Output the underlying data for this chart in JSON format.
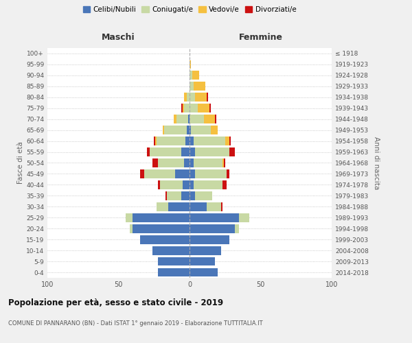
{
  "age_groups": [
    "0-4",
    "5-9",
    "10-14",
    "15-19",
    "20-24",
    "25-29",
    "30-34",
    "35-39",
    "40-44",
    "45-49",
    "50-54",
    "55-59",
    "60-64",
    "65-69",
    "70-74",
    "75-79",
    "80-84",
    "85-89",
    "90-94",
    "95-99",
    "100+"
  ],
  "birth_years": [
    "2014-2018",
    "2009-2013",
    "2004-2008",
    "1999-2003",
    "1994-1998",
    "1989-1993",
    "1984-1988",
    "1979-1983",
    "1974-1978",
    "1969-1973",
    "1964-1968",
    "1959-1963",
    "1954-1958",
    "1949-1953",
    "1944-1948",
    "1939-1943",
    "1934-1938",
    "1929-1933",
    "1924-1928",
    "1919-1923",
    "≤ 1918"
  ],
  "colors": {
    "celibe": "#4a76b8",
    "coniugato": "#c8d9a4",
    "vedovo": "#f5c040",
    "divorziato": "#cc1111"
  },
  "male": {
    "celibe": [
      22,
      22,
      26,
      35,
      40,
      40,
      15,
      6,
      5,
      10,
      4,
      6,
      3,
      2,
      1,
      0,
      0,
      0,
      0,
      0,
      0
    ],
    "coniugato": [
      0,
      0,
      0,
      0,
      2,
      5,
      8,
      10,
      16,
      22,
      18,
      22,
      20,
      16,
      8,
      4,
      2,
      0,
      0,
      0,
      0
    ],
    "vedovo": [
      0,
      0,
      0,
      0,
      0,
      0,
      0,
      0,
      0,
      0,
      0,
      0,
      1,
      1,
      2,
      1,
      2,
      0,
      0,
      0,
      0
    ],
    "divorziato": [
      0,
      0,
      0,
      0,
      0,
      0,
      0,
      1,
      1,
      3,
      4,
      2,
      1,
      0,
      0,
      1,
      0,
      0,
      0,
      0,
      0
    ]
  },
  "female": {
    "nubile": [
      20,
      18,
      22,
      28,
      32,
      35,
      12,
      4,
      3,
      4,
      3,
      4,
      3,
      1,
      0,
      0,
      0,
      0,
      0,
      0,
      0
    ],
    "coniugata": [
      0,
      0,
      0,
      0,
      3,
      7,
      10,
      12,
      20,
      22,
      20,
      24,
      22,
      14,
      10,
      6,
      4,
      3,
      2,
      0,
      0
    ],
    "vedova": [
      0,
      0,
      0,
      0,
      0,
      0,
      0,
      0,
      0,
      0,
      1,
      0,
      3,
      5,
      8,
      8,
      8,
      8,
      5,
      1,
      0
    ],
    "divorziata": [
      0,
      0,
      0,
      0,
      0,
      0,
      1,
      0,
      3,
      2,
      1,
      4,
      1,
      0,
      1,
      1,
      1,
      0,
      0,
      0,
      0
    ]
  },
  "title": "Popolazione per età, sesso e stato civile - 2019",
  "subtitle": "COMUNE DI PANNARANO (BN) - Dati ISTAT 1° gennaio 2019 - Elaborazione TUTTITALIA.IT",
  "ylabel_left": "Fasce di età",
  "ylabel_right": "Anni di nascita",
  "xlabel_left": "Maschi",
  "xlabel_right": "Femmine",
  "xlim": 100,
  "legend_labels": [
    "Celibi/Nubili",
    "Coniugati/e",
    "Vedovi/e",
    "Divorziati/e"
  ],
  "bg_color": "#f0f0f0",
  "plot_bg": "#ffffff"
}
